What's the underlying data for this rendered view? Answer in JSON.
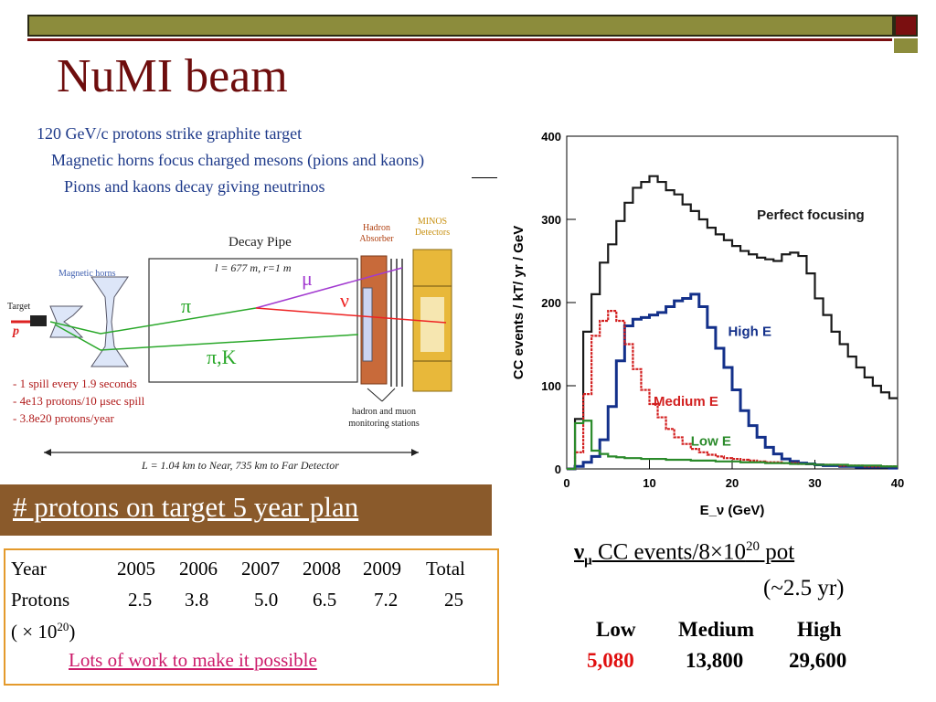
{
  "slide": {
    "title": "NuMI beam",
    "intro_lines": [
      "120 GeV/c protons strike graphite target",
      "Magnetic horns focus charged mesons (pions and kaons)",
      "Pions and kaons decay giving neutrinos"
    ]
  },
  "diagram": {
    "decay_pipe_label": "Decay Pipe",
    "decay_pipe_dims": "l = 677 m, r=1 m",
    "hadron_absorber_label": "Hadron Absorber",
    "minos_label": "MINOS Detectors",
    "magnetic_horns_label": "Magnetic horns",
    "target_label": "Target",
    "proton_label": "p",
    "pi_label": "π",
    "mu_label": "μ",
    "nu_label": "ν",
    "pik_label": "π,K",
    "spill_notes": [
      "- 1 spill every 1.9 seconds",
      "- 4e13 protons/10 μsec spill",
      "- 3.8e20 protons/year"
    ],
    "monitoring_label": "hadron and muon monitoring stations",
    "distance_label": "L = 1.04 km to Near, 735 km to Far Detector"
  },
  "chart_data": {
    "type": "line",
    "xlabel": "E_ν (GeV)",
    "ylabel": "CC events / kT/ yr / GeV",
    "xlim": [
      0,
      40
    ],
    "ylim": [
      0,
      400
    ],
    "xticks": [
      0,
      10,
      20,
      30,
      40
    ],
    "yticks": [
      0,
      100,
      200,
      300,
      400
    ],
    "series": [
      {
        "name": "Perfect focusing",
        "color": "#1a1a1a",
        "x": [
          0,
          1,
          2,
          3,
          4,
          5,
          6,
          7,
          8,
          9,
          10,
          11,
          12,
          13,
          14,
          15,
          16,
          17,
          18,
          19,
          20,
          21,
          22,
          23,
          24,
          25,
          26,
          27,
          28,
          29,
          30,
          31,
          32,
          33,
          34,
          35,
          36,
          37,
          38,
          39,
          40
        ],
        "values": [
          0,
          60,
          165,
          210,
          248,
          270,
          298,
          320,
          338,
          345,
          352,
          345,
          335,
          330,
          318,
          310,
          300,
          290,
          282,
          275,
          268,
          262,
          258,
          254,
          252,
          250,
          258,
          260,
          256,
          235,
          205,
          185,
          165,
          150,
          135,
          122,
          110,
          100,
          92,
          85,
          80
        ]
      },
      {
        "name": "High E",
        "color": "#13308a",
        "x": [
          0,
          1,
          2,
          3,
          4,
          5,
          6,
          7,
          8,
          9,
          10,
          11,
          12,
          13,
          14,
          15,
          16,
          17,
          18,
          19,
          20,
          21,
          22,
          23,
          24,
          25,
          26,
          27,
          28,
          29,
          30,
          31,
          32,
          33,
          34,
          35,
          36,
          37,
          38,
          39,
          40
        ],
        "values": [
          0,
          3,
          8,
          15,
          35,
          75,
          130,
          172,
          180,
          182,
          185,
          188,
          195,
          202,
          205,
          210,
          195,
          170,
          145,
          122,
          95,
          70,
          52,
          38,
          26,
          18,
          12,
          9,
          7,
          6,
          5,
          4,
          4,
          3,
          3,
          2,
          2,
          2,
          2,
          1,
          1
        ]
      },
      {
        "name": "Medium E",
        "color": "#d21f1f",
        "x": [
          0,
          1,
          2,
          3,
          4,
          5,
          6,
          7,
          8,
          9,
          10,
          11,
          12,
          13,
          14,
          15,
          16,
          17,
          18,
          19,
          20,
          21,
          22,
          23,
          24,
          25,
          26,
          27,
          28,
          29,
          30,
          31,
          32,
          33,
          34,
          35,
          36,
          37,
          38,
          39,
          40
        ],
        "values": [
          0,
          20,
          90,
          160,
          178,
          190,
          178,
          150,
          120,
          95,
          78,
          62,
          48,
          38,
          30,
          24,
          20,
          17,
          15,
          13,
          12,
          11,
          10,
          9,
          8,
          8,
          7,
          7,
          6,
          6,
          5,
          5,
          5,
          4,
          4,
          4,
          3,
          3,
          3,
          3,
          3
        ]
      },
      {
        "name": "Low E",
        "color": "#2a8a2a",
        "x": [
          0,
          1,
          2,
          3,
          4,
          5,
          6,
          7,
          8,
          9,
          10,
          11,
          12,
          13,
          14,
          15,
          16,
          17,
          18,
          19,
          20,
          21,
          22,
          23,
          24,
          25,
          26,
          27,
          28,
          29,
          30,
          31,
          32,
          33,
          34,
          35,
          36,
          37,
          38,
          39,
          40
        ],
        "values": [
          0,
          55,
          58,
          22,
          18,
          15,
          14,
          13,
          13,
          12,
          12,
          12,
          11,
          11,
          11,
          10,
          10,
          10,
          9,
          9,
          9,
          8,
          8,
          8,
          7,
          7,
          7,
          6,
          6,
          6,
          5,
          5,
          5,
          5,
          4,
          4,
          4,
          4,
          3,
          3,
          3
        ]
      }
    ]
  },
  "banner": {
    "text": "# protons on target 5 year plan"
  },
  "plan_table": {
    "columns": [
      "Year",
      "2005",
      "2006",
      "2007",
      "2008",
      "2009",
      "Total"
    ],
    "row_label": "Protons",
    "values": [
      "2.5",
      "3.8",
      "5.0",
      "6.5",
      "7.2",
      "25"
    ],
    "unit_label": "( × 10",
    "unit_exp": "20",
    "unit_close": ")",
    "note": "Lots of work to make it possible"
  },
  "cc_events": {
    "prefix_sym": "ν",
    "prefix_sub": "μ",
    "headline": " CC events/8×10",
    "headline_exp": "20",
    "headline_suffix": " pot",
    "duration": "(~2.5 yr)",
    "columns": [
      "Low",
      "Medium",
      "High"
    ],
    "values": [
      "5,080",
      "13,800",
      "29,600"
    ],
    "low_color": "#e01010"
  }
}
